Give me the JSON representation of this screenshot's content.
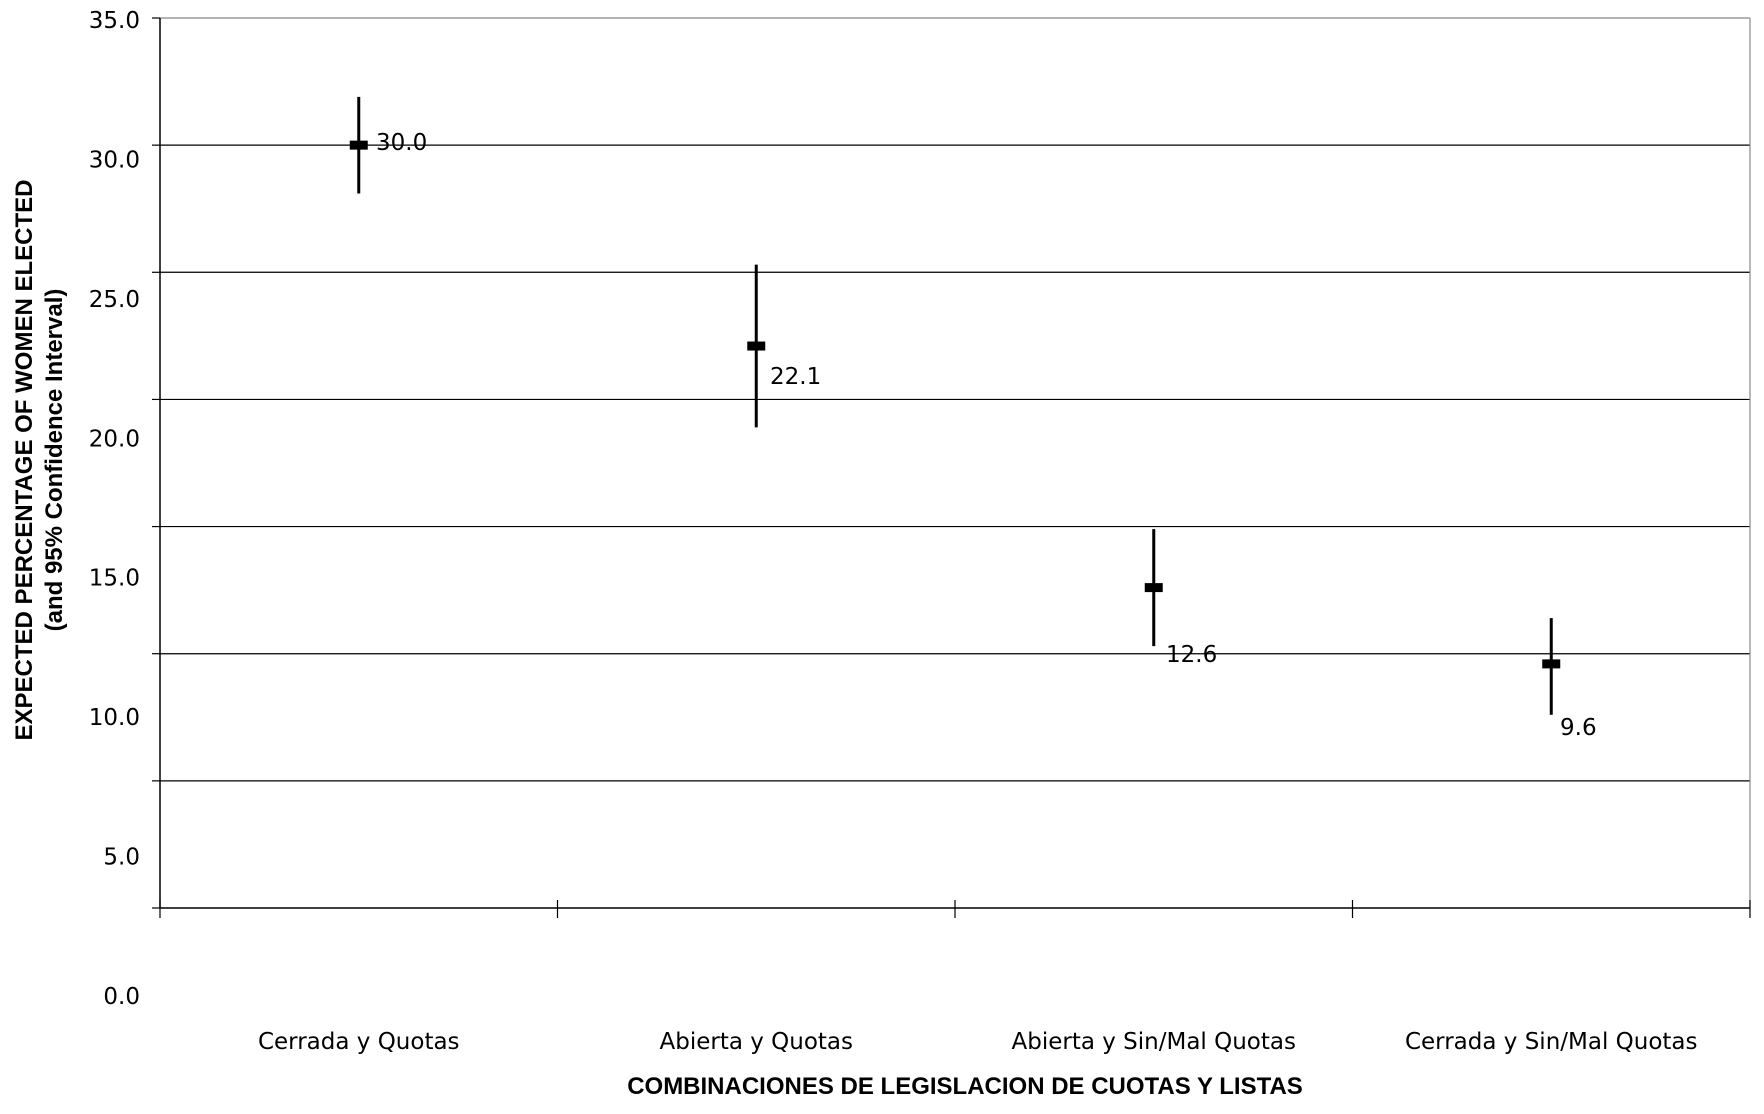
{
  "chart_data": {
    "type": "scatter",
    "title": "",
    "xlabel": "COMBINACIONES DE LEGISLACION DE CUOTAS Y LISTAS",
    "ylabel": "EXPECTED PERCENTAGE OF WOMEN ELECTED",
    "ylabel2": "(and 95% Confidence Interval)",
    "ylim": [
      0,
      35
    ],
    "yticks": [
      "0.0",
      "5.0",
      "10.0",
      "15.0",
      "20.0",
      "25.0",
      "30.0",
      "35.0"
    ],
    "grid": true,
    "categories": [
      "Cerrada y Quotas",
      "Abierta y Quotas",
      "Abierta y Sin/Mal Quotas",
      "Cerrada y Sin/Mal Quotas"
    ],
    "series": [
      {
        "values": [
          30.0,
          22.1,
          12.6,
          9.6
        ],
        "ci_low": [
          28.1,
          18.9,
          10.3,
          7.6
        ],
        "ci_high": [
          31.9,
          25.3,
          14.9,
          11.4
        ],
        "data_labels": [
          "30.0",
          "22.1",
          "12.6",
          "9.6"
        ]
      }
    ]
  }
}
